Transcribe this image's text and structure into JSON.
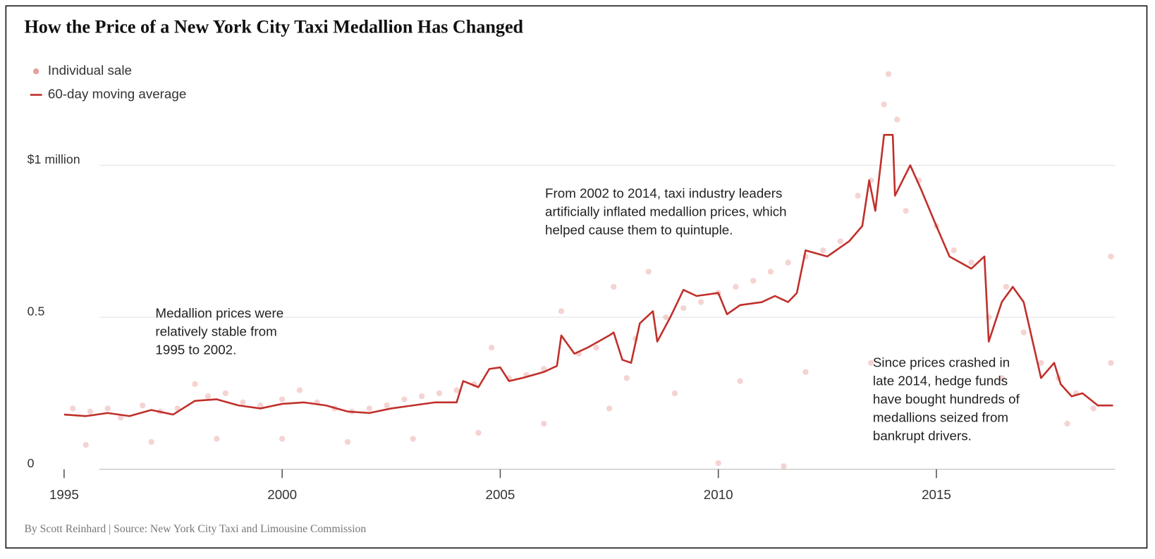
{
  "chart_data": {
    "type": "line",
    "title": "How the Price of a New York City Taxi Medallion Has Changed",
    "source": "By Scott Reinhard | Source: New York City Taxi and Limousine Commission",
    "xlim": [
      1995,
      2019.1
    ],
    "xticks": [
      1995,
      2000,
      2005,
      2010,
      2015
    ],
    "ylim": [
      0,
      1.35
    ],
    "yticks": [
      0,
      0.5,
      {
        "value": 1,
        "label": "$1 million"
      }
    ],
    "grid": true,
    "annotations": [
      [
        "Medallion prices were",
        "relatively stable from",
        "1995 to 2002."
      ],
      [
        "From 2002 to 2014, taxi industry leaders",
        "artificially inflated medallion prices, which",
        "helped cause them to quintuple."
      ],
      [
        "Since prices crashed in",
        "late 2014, hedge funds",
        "have bought hundreds of",
        "medallions seized from",
        "bankrupt drivers."
      ]
    ],
    "series": [
      {
        "name": "Individual sale",
        "type": "scatter",
        "color": "#e6a09e",
        "x": [
          1995.2,
          1995.6,
          1996.0,
          1996.3,
          1996.8,
          1997.2,
          1997.6,
          1998.0,
          1998.3,
          1998.7,
          1999.1,
          1999.5,
          2000.0,
          2000.4,
          2000.8,
          2001.2,
          2001.6,
          2002.0,
          2002.4,
          2002.8,
          2003.2,
          2003.6,
          2004.0,
          2004.4,
          2004.8,
          2005.2,
          2005.6,
          2006.0,
          2006.4,
          2006.8,
          2007.2,
          2007.6,
          2007.9,
          2008.1,
          2008.4,
          2008.8,
          2009.2,
          2009.6,
          2010.0,
          2010.4,
          2010.8,
          2011.2,
          2011.6,
          2012.0,
          2012.4,
          2012.8,
          2013.2,
          2013.5,
          2013.8,
          2013.9,
          2014.1,
          2014.3,
          2014.6,
          2015.0,
          2015.4,
          2015.8,
          2016.2,
          2016.6,
          2017.0,
          2017.4,
          2017.8,
          2018.2,
          2018.6,
          2019.0,
          2019.0,
          1995.5,
          1997.0,
          1998.5,
          2000.0,
          2001.5,
          2003.0,
          2004.5,
          2006.0,
          2007.5,
          2009.0,
          2010.5,
          2012.0,
          2013.5,
          2010.0,
          2011.5,
          2018.0,
          2016.5
        ],
        "values": [
          0.2,
          0.19,
          0.2,
          0.17,
          0.21,
          0.19,
          0.2,
          0.28,
          0.24,
          0.25,
          0.22,
          0.21,
          0.23,
          0.26,
          0.22,
          0.2,
          0.19,
          0.2,
          0.21,
          0.23,
          0.24,
          0.25,
          0.26,
          0.28,
          0.4,
          0.3,
          0.31,
          0.33,
          0.52,
          0.38,
          0.4,
          0.6,
          0.3,
          0.43,
          0.65,
          0.5,
          0.53,
          0.55,
          0.58,
          0.6,
          0.62,
          0.65,
          0.68,
          0.7,
          0.72,
          0.75,
          0.9,
          0.95,
          1.2,
          1.3,
          1.15,
          0.85,
          0.95,
          0.8,
          0.72,
          0.68,
          0.5,
          0.6,
          0.45,
          0.35,
          0.3,
          0.25,
          0.2,
          0.35,
          0.7,
          0.08,
          0.09,
          0.1,
          0.1,
          0.09,
          0.1,
          0.12,
          0.15,
          0.2,
          0.25,
          0.29,
          0.32,
          0.35,
          0.02,
          0.01,
          0.15,
          0.3
        ]
      },
      {
        "name": "60-day moving average",
        "type": "line",
        "color": "#c0302b",
        "x": [
          1995.0,
          1995.5,
          1996.0,
          1996.5,
          1997.0,
          1997.5,
          1998.0,
          1998.5,
          1999.0,
          1999.5,
          2000.0,
          2000.5,
          2001.0,
          2001.5,
          2002.0,
          2002.5,
          2003.0,
          2003.5,
          2004.0,
          2004.15,
          2004.5,
          2004.75,
          2005.0,
          2005.2,
          2005.5,
          2006.0,
          2006.3,
          2006.4,
          2006.7,
          2007.0,
          2007.5,
          2007.6,
          2007.8,
          2008.0,
          2008.2,
          2008.5,
          2008.6,
          2008.9,
          2009.2,
          2009.5,
          2010.0,
          2010.2,
          2010.5,
          2011.0,
          2011.3,
          2011.6,
          2011.8,
          2012.0,
          2012.5,
          2013.0,
          2013.3,
          2013.46,
          2013.6,
          2013.8,
          2014.0,
          2014.05,
          2014.4,
          2014.65,
          2015.0,
          2015.3,
          2015.8,
          2016.1,
          2016.2,
          2016.5,
          2016.75,
          2017.0,
          2017.4,
          2017.7,
          2017.85,
          2018.1,
          2018.35,
          2018.7,
          2019.05
        ],
        "values": [
          0.18,
          0.175,
          0.185,
          0.175,
          0.195,
          0.18,
          0.225,
          0.23,
          0.21,
          0.2,
          0.215,
          0.22,
          0.21,
          0.19,
          0.185,
          0.2,
          0.21,
          0.22,
          0.22,
          0.29,
          0.27,
          0.33,
          0.335,
          0.29,
          0.3,
          0.32,
          0.34,
          0.44,
          0.38,
          0.4,
          0.44,
          0.45,
          0.36,
          0.35,
          0.48,
          0.52,
          0.42,
          0.5,
          0.59,
          0.57,
          0.58,
          0.51,
          0.54,
          0.55,
          0.57,
          0.55,
          0.58,
          0.72,
          0.7,
          0.75,
          0.8,
          0.95,
          0.85,
          1.1,
          1.1,
          0.9,
          1.0,
          0.92,
          0.8,
          0.7,
          0.66,
          0.7,
          0.42,
          0.55,
          0.6,
          0.55,
          0.3,
          0.35,
          0.28,
          0.24,
          0.25,
          0.21,
          0.21
        ]
      }
    ]
  }
}
